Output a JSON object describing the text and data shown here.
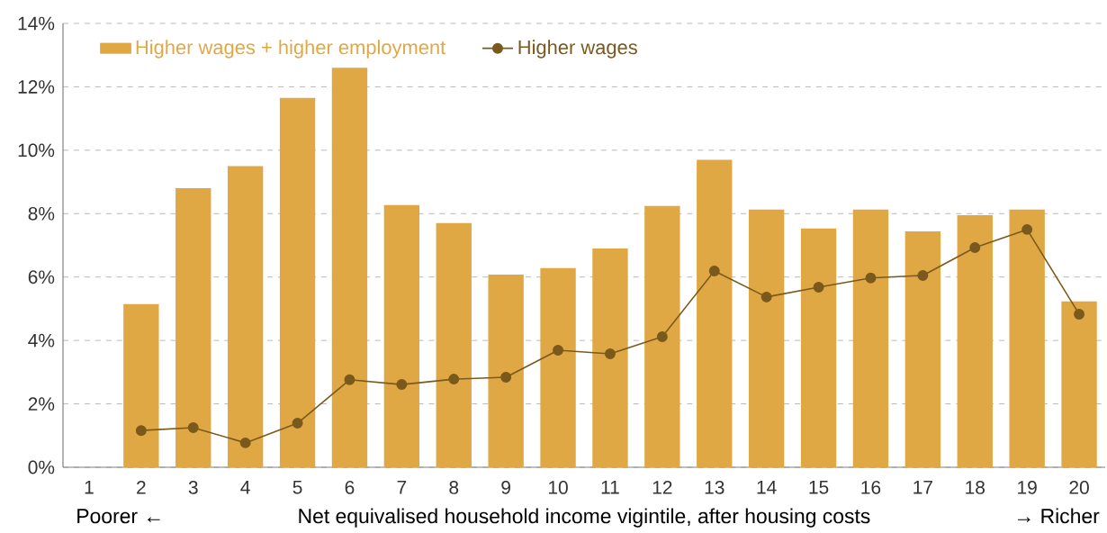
{
  "chart_data": {
    "type": "bar",
    "xlabel": "Net equivalised household income vigintile, after housing costs",
    "annotations": [
      "Poorer ←",
      "→ Richer"
    ],
    "categories": [
      "1",
      "2",
      "3",
      "4",
      "5",
      "6",
      "7",
      "8",
      "9",
      "10",
      "11",
      "12",
      "13",
      "14",
      "15",
      "16",
      "17",
      "18",
      "19",
      "20"
    ],
    "series": [
      {
        "name": "Higher wages + higher employment",
        "color": "#e0a845",
        "values": [
          null,
          5.15,
          8.8,
          9.5,
          11.65,
          12.6,
          8.27,
          7.7,
          6.08,
          6.28,
          6.9,
          8.24,
          9.7,
          8.13,
          7.53,
          8.13,
          7.44,
          7.95,
          8.13,
          5.23
        ]
      },
      {
        "name": "Higher wages",
        "type": "line",
        "color": "#7a5a1c",
        "marker": "circle",
        "values": [
          null,
          1.16,
          1.25,
          0.77,
          1.39,
          2.76,
          2.61,
          2.78,
          2.84,
          3.69,
          3.58,
          4.12,
          6.19,
          5.37,
          5.68,
          5.97,
          6.05,
          6.93,
          7.5,
          4.83
        ]
      }
    ],
    "ylim": [
      0,
      14
    ],
    "yticks": [
      {
        "value": 0,
        "label": "0%"
      },
      {
        "value": 2,
        "label": "2%"
      },
      {
        "value": 4,
        "label": "4%"
      },
      {
        "value": 6,
        "label": "6%"
      },
      {
        "value": 8,
        "label": "8%"
      },
      {
        "value": 10,
        "label": "10%"
      },
      {
        "value": 12,
        "label": "12%"
      },
      {
        "value": 14,
        "label": "14%"
      }
    ],
    "grid": "y",
    "legend": "top left"
  }
}
